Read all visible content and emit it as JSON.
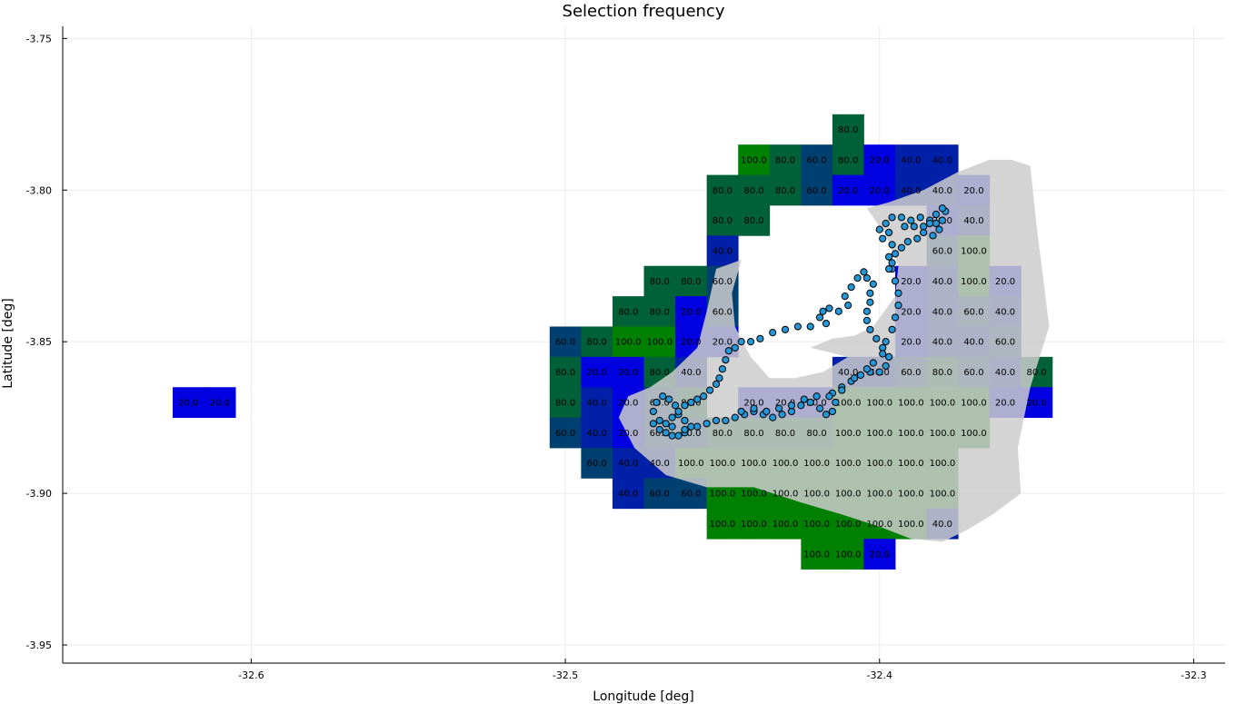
{
  "chart_data": {
    "type": "heatmap",
    "title": "Selection frequency",
    "xlabel": "Longitude [deg]",
    "ylabel": "Latitude [deg]",
    "xlim": [
      -32.66,
      -32.29
    ],
    "ylim": [
      -3.956,
      -3.746
    ],
    "xticks": [
      -32.6,
      -32.5,
      -32.4,
      -32.3
    ],
    "yticks": [
      -3.75,
      -3.8,
      -3.85,
      -3.9,
      -3.95
    ],
    "xtick_labels": [
      "-32.6",
      "-32.5",
      "-32.4",
      "-32.3"
    ],
    "ytick_labels": [
      "-3.75",
      "-3.80",
      "-3.85",
      "-3.90",
      "-3.95"
    ],
    "grid": true,
    "legend": "none",
    "cell_size_deg": [
      0.01,
      0.01
    ],
    "color_scale": {
      "low": "#0000e0",
      "high": "#008000"
    },
    "island_color": "#cccccc",
    "track_color": "#2596d6",
    "cells": [
      {
        "x": -32.41,
        "y": -3.78,
        "v": "80.0"
      },
      {
        "x": -32.44,
        "y": -3.79,
        "v": "100.0"
      },
      {
        "x": -32.43,
        "y": -3.79,
        "v": "80.0"
      },
      {
        "x": -32.42,
        "y": -3.79,
        "v": "60.0"
      },
      {
        "x": -32.41,
        "y": -3.79,
        "v": "80.0"
      },
      {
        "x": -32.4,
        "y": -3.79,
        "v": "20.0"
      },
      {
        "x": -32.39,
        "y": -3.79,
        "v": "40.0"
      },
      {
        "x": -32.38,
        "y": -3.79,
        "v": "40.0"
      },
      {
        "x": -32.45,
        "y": -3.8,
        "v": "80.0"
      },
      {
        "x": -32.44,
        "y": -3.8,
        "v": "80.0"
      },
      {
        "x": -32.43,
        "y": -3.8,
        "v": "80.0"
      },
      {
        "x": -32.42,
        "y": -3.8,
        "v": "60.0"
      },
      {
        "x": -32.41,
        "y": -3.8,
        "v": "20.0"
      },
      {
        "x": -32.4,
        "y": -3.8,
        "v": "20.0"
      },
      {
        "x": -32.39,
        "y": -3.8,
        "v": "40.0"
      },
      {
        "x": -32.38,
        "y": -3.8,
        "v": "40.0"
      },
      {
        "x": -32.37,
        "y": -3.8,
        "v": "20.0"
      },
      {
        "x": -32.45,
        "y": -3.81,
        "v": "80.0"
      },
      {
        "x": -32.44,
        "y": -3.81,
        "v": "80.0"
      },
      {
        "x": -32.38,
        "y": -3.81,
        "v": "20.0"
      },
      {
        "x": -32.37,
        "y": -3.81,
        "v": "40.0"
      },
      {
        "x": -32.45,
        "y": -3.82,
        "v": "40.0"
      },
      {
        "x": -32.38,
        "y": -3.82,
        "v": "60.0"
      },
      {
        "x": -32.37,
        "y": -3.82,
        "v": "100.0"
      },
      {
        "x": -32.47,
        "y": -3.83,
        "v": "80.0"
      },
      {
        "x": -32.46,
        "y": -3.83,
        "v": "80.0"
      },
      {
        "x": -32.45,
        "y": -3.83,
        "v": "60.0"
      },
      {
        "x": -32.39,
        "y": -3.83,
        "v": "20.0"
      },
      {
        "x": -32.38,
        "y": -3.83,
        "v": "40.0"
      },
      {
        "x": -32.37,
        "y": -3.83,
        "v": "100.0"
      },
      {
        "x": -32.36,
        "y": -3.83,
        "v": "20.0"
      },
      {
        "x": -32.48,
        "y": -3.84,
        "v": "80.0"
      },
      {
        "x": -32.47,
        "y": -3.84,
        "v": "80.0"
      },
      {
        "x": -32.46,
        "y": -3.84,
        "v": "20.0"
      },
      {
        "x": -32.45,
        "y": -3.84,
        "v": "60.0"
      },
      {
        "x": -32.39,
        "y": -3.84,
        "v": "20.0"
      },
      {
        "x": -32.38,
        "y": -3.84,
        "v": "40.0"
      },
      {
        "x": -32.37,
        "y": -3.84,
        "v": "60.0"
      },
      {
        "x": -32.36,
        "y": -3.84,
        "v": "40.0"
      },
      {
        "x": -32.5,
        "y": -3.85,
        "v": "60.0"
      },
      {
        "x": -32.49,
        "y": -3.85,
        "v": "80.0"
      },
      {
        "x": -32.48,
        "y": -3.85,
        "v": "100.0"
      },
      {
        "x": -32.47,
        "y": -3.85,
        "v": "100.0"
      },
      {
        "x": -32.46,
        "y": -3.85,
        "v": "20.0"
      },
      {
        "x": -32.45,
        "y": -3.85,
        "v": "20.0"
      },
      {
        "x": -32.39,
        "y": -3.85,
        "v": "20.0"
      },
      {
        "x": -32.38,
        "y": -3.85,
        "v": "40.0"
      },
      {
        "x": -32.37,
        "y": -3.85,
        "v": "40.0"
      },
      {
        "x": -32.36,
        "y": -3.85,
        "v": "60.0"
      },
      {
        "x": -32.5,
        "y": -3.86,
        "v": "80.0"
      },
      {
        "x": -32.49,
        "y": -3.86,
        "v": "20.0"
      },
      {
        "x": -32.48,
        "y": -3.86,
        "v": "20.0"
      },
      {
        "x": -32.47,
        "y": -3.86,
        "v": "80.0"
      },
      {
        "x": -32.46,
        "y": -3.86,
        "v": "40.0"
      },
      {
        "x": -32.41,
        "y": -3.86,
        "v": "40.0"
      },
      {
        "x": -32.4,
        "y": -3.86,
        "v": "40.0"
      },
      {
        "x": -32.39,
        "y": -3.86,
        "v": "60.0"
      },
      {
        "x": -32.38,
        "y": -3.86,
        "v": "80.0"
      },
      {
        "x": -32.37,
        "y": -3.86,
        "v": "60.0"
      },
      {
        "x": -32.36,
        "y": -3.86,
        "v": "40.0"
      },
      {
        "x": -32.35,
        "y": -3.86,
        "v": "80.0"
      },
      {
        "x": -32.62,
        "y": -3.87,
        "v": "20.0"
      },
      {
        "x": -32.61,
        "y": -3.87,
        "v": "20.0"
      },
      {
        "x": -32.5,
        "y": -3.87,
        "v": "80.0"
      },
      {
        "x": -32.49,
        "y": -3.87,
        "v": "40.0"
      },
      {
        "x": -32.48,
        "y": -3.87,
        "v": "20.0"
      },
      {
        "x": -32.47,
        "y": -3.87,
        "v": "60.0"
      },
      {
        "x": -32.46,
        "y": -3.87,
        "v": "80.0"
      },
      {
        "x": -32.44,
        "y": -3.87,
        "v": "20.0"
      },
      {
        "x": -32.43,
        "y": -3.87,
        "v": "20.0"
      },
      {
        "x": -32.42,
        "y": -3.87,
        "v": "20.0"
      },
      {
        "x": -32.41,
        "y": -3.87,
        "v": "100.0"
      },
      {
        "x": -32.4,
        "y": -3.87,
        "v": "100.0"
      },
      {
        "x": -32.39,
        "y": -3.87,
        "v": "100.0"
      },
      {
        "x": -32.38,
        "y": -3.87,
        "v": "100.0"
      },
      {
        "x": -32.37,
        "y": -3.87,
        "v": "100.0"
      },
      {
        "x": -32.36,
        "y": -3.87,
        "v": "20.0"
      },
      {
        "x": -32.35,
        "y": -3.87,
        "v": "20.0"
      },
      {
        "x": -32.5,
        "y": -3.88,
        "v": "60.0"
      },
      {
        "x": -32.49,
        "y": -3.88,
        "v": "40.0"
      },
      {
        "x": -32.48,
        "y": -3.88,
        "v": "20.0"
      },
      {
        "x": -32.47,
        "y": -3.88,
        "v": "60.0"
      },
      {
        "x": -32.46,
        "y": -3.88,
        "v": "60.0"
      },
      {
        "x": -32.45,
        "y": -3.88,
        "v": "80.0"
      },
      {
        "x": -32.44,
        "y": -3.88,
        "v": "80.0"
      },
      {
        "x": -32.43,
        "y": -3.88,
        "v": "80.0"
      },
      {
        "x": -32.42,
        "y": -3.88,
        "v": "80.0"
      },
      {
        "x": -32.41,
        "y": -3.88,
        "v": "100.0"
      },
      {
        "x": -32.4,
        "y": -3.88,
        "v": "100.0"
      },
      {
        "x": -32.39,
        "y": -3.88,
        "v": "100.0"
      },
      {
        "x": -32.38,
        "y": -3.88,
        "v": "100.0"
      },
      {
        "x": -32.37,
        "y": -3.88,
        "v": "100.0"
      },
      {
        "x": -32.49,
        "y": -3.89,
        "v": "60.0"
      },
      {
        "x": -32.48,
        "y": -3.89,
        "v": "40.0"
      },
      {
        "x": -32.47,
        "y": -3.89,
        "v": "40.0"
      },
      {
        "x": -32.46,
        "y": -3.89,
        "v": "100.0"
      },
      {
        "x": -32.45,
        "y": -3.89,
        "v": "100.0"
      },
      {
        "x": -32.44,
        "y": -3.89,
        "v": "100.0"
      },
      {
        "x": -32.43,
        "y": -3.89,
        "v": "100.0"
      },
      {
        "x": -32.42,
        "y": -3.89,
        "v": "100.0"
      },
      {
        "x": -32.41,
        "y": -3.89,
        "v": "100.0"
      },
      {
        "x": -32.4,
        "y": -3.89,
        "v": "100.0"
      },
      {
        "x": -32.39,
        "y": -3.89,
        "v": "100.0"
      },
      {
        "x": -32.38,
        "y": -3.89,
        "v": "100.0"
      },
      {
        "x": -32.48,
        "y": -3.9,
        "v": "40.0"
      },
      {
        "x": -32.47,
        "y": -3.9,
        "v": "60.0"
      },
      {
        "x": -32.46,
        "y": -3.9,
        "v": "60.0"
      },
      {
        "x": -32.45,
        "y": -3.9,
        "v": "100.0"
      },
      {
        "x": -32.44,
        "y": -3.9,
        "v": "100.0"
      },
      {
        "x": -32.43,
        "y": -3.9,
        "v": "100.0"
      },
      {
        "x": -32.42,
        "y": -3.9,
        "v": "100.0"
      },
      {
        "x": -32.41,
        "y": -3.9,
        "v": "100.0"
      },
      {
        "x": -32.4,
        "y": -3.9,
        "v": "100.0"
      },
      {
        "x": -32.39,
        "y": -3.9,
        "v": "100.0"
      },
      {
        "x": -32.38,
        "y": -3.9,
        "v": "100.0"
      },
      {
        "x": -32.45,
        "y": -3.91,
        "v": "100.0"
      },
      {
        "x": -32.44,
        "y": -3.91,
        "v": "100.0"
      },
      {
        "x": -32.43,
        "y": -3.91,
        "v": "100.0"
      },
      {
        "x": -32.42,
        "y": -3.91,
        "v": "100.0"
      },
      {
        "x": -32.41,
        "y": -3.91,
        "v": "100.0"
      },
      {
        "x": -32.4,
        "y": -3.91,
        "v": "100.0"
      },
      {
        "x": -32.39,
        "y": -3.91,
        "v": "100.0"
      },
      {
        "x": -32.38,
        "y": -3.91,
        "v": "40.0"
      },
      {
        "x": -32.42,
        "y": -3.92,
        "v": "100.0"
      },
      {
        "x": -32.41,
        "y": -3.92,
        "v": "100.0"
      },
      {
        "x": -32.4,
        "y": -3.92,
        "v": "20.0"
      }
    ],
    "island_outline": [
      [
        -32.352,
        -3.792
      ],
      [
        -32.358,
        -3.79
      ],
      [
        -32.365,
        -3.79
      ],
      [
        -32.375,
        -3.794
      ],
      [
        -32.386,
        -3.8
      ],
      [
        -32.397,
        -3.804
      ],
      [
        -32.404,
        -3.806
      ],
      [
        -32.398,
        -3.815
      ],
      [
        -32.394,
        -3.825
      ],
      [
        -32.395,
        -3.835
      ],
      [
        -32.402,
        -3.845
      ],
      [
        -32.408,
        -3.848
      ],
      [
        -32.415,
        -3.849
      ],
      [
        -32.422,
        -3.852
      ],
      [
        -32.41,
        -3.855
      ],
      [
        -32.418,
        -3.86
      ],
      [
        -32.427,
        -3.862
      ],
      [
        -32.435,
        -3.862
      ],
      [
        -32.441,
        -3.855
      ],
      [
        -32.446,
        -3.845
      ],
      [
        -32.447,
        -3.834
      ],
      [
        -32.444,
        -3.823
      ],
      [
        -32.452,
        -3.826
      ],
      [
        -32.455,
        -3.84
      ],
      [
        -32.458,
        -3.852
      ],
      [
        -32.466,
        -3.86
      ],
      [
        -32.473,
        -3.865
      ],
      [
        -32.48,
        -3.868
      ],
      [
        -32.483,
        -3.875
      ],
      [
        -32.478,
        -3.885
      ],
      [
        -32.468,
        -3.894
      ],
      [
        -32.455,
        -3.898
      ],
      [
        -32.44,
        -3.898
      ],
      [
        -32.425,
        -3.903
      ],
      [
        -32.412,
        -3.907
      ],
      [
        -32.4,
        -3.911
      ],
      [
        -32.39,
        -3.915
      ],
      [
        -32.38,
        -3.916
      ],
      [
        -32.372,
        -3.912
      ],
      [
        -32.364,
        -3.907
      ],
      [
        -32.355,
        -3.9
      ],
      [
        -32.356,
        -3.885
      ],
      [
        -32.352,
        -3.865
      ],
      [
        -32.346,
        -3.845
      ],
      [
        -32.348,
        -3.828
      ],
      [
        -32.35,
        -3.812
      ]
    ],
    "track": [
      [
        -32.472,
        -3.877
      ],
      [
        -32.47,
        -3.879
      ],
      [
        -32.468,
        -3.88
      ],
      [
        -32.466,
        -3.881
      ],
      [
        -32.464,
        -3.881
      ],
      [
        -32.462,
        -3.88
      ],
      [
        -32.46,
        -3.878
      ],
      [
        -32.462,
        -3.876
      ],
      [
        -32.464,
        -3.874
      ],
      [
        -32.465,
        -3.871
      ],
      [
        -32.467,
        -3.869
      ],
      [
        -32.469,
        -3.868
      ],
      [
        -32.471,
        -3.87
      ],
      [
        -32.472,
        -3.873
      ],
      [
        -32.47,
        -3.876
      ],
      [
        -32.466,
        -3.878
      ],
      [
        -32.462,
        -3.879
      ],
      [
        -32.458,
        -3.878
      ],
      [
        -32.455,
        -3.877
      ],
      [
        -32.452,
        -3.876
      ],
      [
        -32.449,
        -3.876
      ],
      [
        -32.446,
        -3.875
      ],
      [
        -32.443,
        -3.874
      ],
      [
        -32.44,
        -3.873
      ],
      [
        -32.437,
        -3.874
      ],
      [
        -32.434,
        -3.875
      ],
      [
        -32.431,
        -3.874
      ],
      [
        -32.428,
        -3.873
      ],
      [
        -32.425,
        -3.871
      ],
      [
        -32.422,
        -3.87
      ],
      [
        -32.419,
        -3.872
      ],
      [
        -32.417,
        -3.874
      ],
      [
        -32.415,
        -3.873
      ],
      [
        -32.414,
        -3.87
      ],
      [
        -32.415,
        -3.867
      ],
      [
        -32.412,
        -3.865
      ],
      [
        -32.409,
        -3.863
      ],
      [
        -32.406,
        -3.861
      ],
      [
        -32.403,
        -3.86
      ],
      [
        -32.4,
        -3.86
      ],
      [
        -32.398,
        -3.858
      ],
      [
        -32.397,
        -3.855
      ],
      [
        -32.399,
        -3.852
      ],
      [
        -32.401,
        -3.849
      ],
      [
        -32.403,
        -3.846
      ],
      [
        -32.404,
        -3.843
      ],
      [
        -32.404,
        -3.84
      ],
      [
        -32.403,
        -3.837
      ],
      [
        -32.403,
        -3.834
      ],
      [
        -32.402,
        -3.831
      ],
      [
        -32.404,
        -3.829
      ],
      [
        -32.405,
        -3.827
      ],
      [
        -32.407,
        -3.829
      ],
      [
        -32.409,
        -3.832
      ],
      [
        -32.411,
        -3.835
      ],
      [
        -32.41,
        -3.838
      ],
      [
        -32.413,
        -3.84
      ],
      [
        -32.416,
        -3.839
      ],
      [
        -32.418,
        -3.84
      ],
      [
        -32.419,
        -3.842
      ],
      [
        -32.417,
        -3.844
      ],
      [
        -32.422,
        -3.845
      ],
      [
        -32.426,
        -3.845
      ],
      [
        -32.43,
        -3.846
      ],
      [
        -32.434,
        -3.847
      ],
      [
        -32.438,
        -3.849
      ],
      [
        -32.441,
        -3.85
      ],
      [
        -32.444,
        -3.85
      ],
      [
        -32.446,
        -3.852
      ],
      [
        -32.448,
        -3.853
      ],
      [
        -32.449,
        -3.856
      ],
      [
        -32.45,
        -3.859
      ],
      [
        -32.451,
        -3.862
      ],
      [
        -32.452,
        -3.864
      ],
      [
        -32.454,
        -3.866
      ],
      [
        -32.456,
        -3.868
      ],
      [
        -32.458,
        -3.869
      ],
      [
        -32.46,
        -3.87
      ],
      [
        -32.462,
        -3.871
      ],
      [
        -32.464,
        -3.873
      ],
      [
        -32.466,
        -3.875
      ],
      [
        -32.468,
        -3.877
      ],
      [
        -32.444,
        -3.873
      ],
      [
        -32.44,
        -3.872
      ],
      [
        -32.436,
        -3.873
      ],
      [
        -32.432,
        -3.872
      ],
      [
        -32.428,
        -3.871
      ],
      [
        -32.424,
        -3.869
      ],
      [
        -32.42,
        -3.868
      ],
      [
        -32.416,
        -3.868
      ],
      [
        -32.412,
        -3.866
      ],
      [
        -32.408,
        -3.862
      ],
      [
        -32.404,
        -3.859
      ],
      [
        -32.402,
        -3.857
      ],
      [
        -32.399,
        -3.854
      ],
      [
        -32.398,
        -3.85
      ],
      [
        -32.396,
        -3.846
      ],
      [
        -32.395,
        -3.842
      ],
      [
        -32.394,
        -3.838
      ],
      [
        -32.394,
        -3.834
      ],
      [
        -32.395,
        -3.83
      ],
      [
        -32.396,
        -3.826
      ],
      [
        -32.397,
        -3.822
      ],
      [
        -32.396,
        -3.818
      ],
      [
        -32.397,
        -3.814
      ],
      [
        -32.398,
        -3.811
      ],
      [
        -32.396,
        -3.809
      ],
      [
        -32.393,
        -3.809
      ],
      [
        -32.39,
        -3.81
      ],
      [
        -32.387,
        -3.809
      ],
      [
        -32.384,
        -3.81
      ],
      [
        -32.382,
        -3.811
      ],
      [
        -32.38,
        -3.81
      ],
      [
        -32.379,
        -3.807
      ],
      [
        -32.38,
        -3.806
      ],
      [
        -32.382,
        -3.808
      ],
      [
        -32.384,
        -3.811
      ],
      [
        -32.386,
        -3.814
      ],
      [
        -32.388,
        -3.816
      ],
      [
        -32.391,
        -3.817
      ],
      [
        -32.393,
        -3.819
      ],
      [
        -32.395,
        -3.821
      ],
      [
        -32.396,
        -3.824
      ],
      [
        -32.397,
        -3.826
      ],
      [
        -32.399,
        -3.816
      ],
      [
        -32.4,
        -3.813
      ],
      [
        -32.392,
        -3.812
      ],
      [
        -32.389,
        -3.812
      ],
      [
        -32.386,
        -3.812
      ],
      [
        -32.383,
        -3.815
      ],
      [
        -32.381,
        -3.813
      ]
    ]
  }
}
